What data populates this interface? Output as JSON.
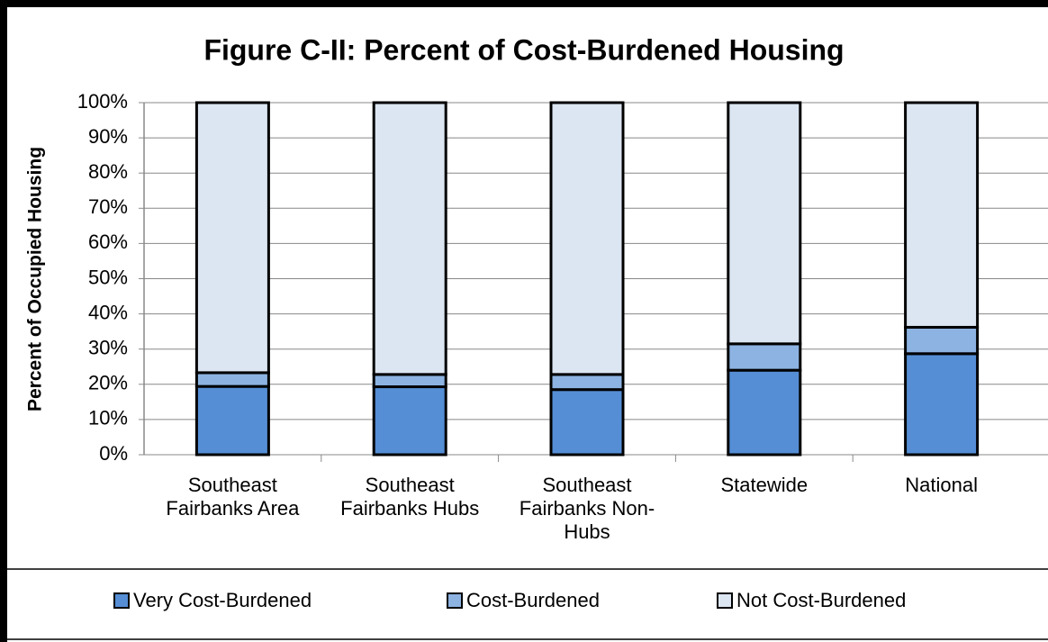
{
  "chart_data": {
    "type": "stacked_bar",
    "title": "Figure C-II: Percent of Cost-Burdened Housing",
    "y_label": "Percent of Occupied Housing",
    "categories": [
      "Southeast Fairbanks Area",
      "Southeast Fairbanks Hubs",
      "Southeast Fairbanks Non-Hubs",
      "Statewide",
      "National"
    ],
    "series": [
      {
        "name": "Very Cost-Burdened",
        "color": "#558ed5",
        "values": [
          19.4,
          19.3,
          18.5,
          24.0,
          28.7
        ]
      },
      {
        "name": "Cost-Burdened",
        "color": "#8db3e2",
        "values": [
          3.9,
          3.5,
          4.3,
          7.5,
          7.5
        ]
      },
      {
        "name": "Not Cost-Burdened",
        "color": "#dce6f2",
        "values": [
          76.7,
          77.2,
          77.2,
          68.5,
          63.8
        ]
      }
    ],
    "ylim": [
      0,
      100
    ],
    "yticks": [
      {
        "value": 0,
        "label": "0%"
      },
      {
        "value": 10,
        "label": "10%"
      },
      {
        "value": 20,
        "label": "20%"
      },
      {
        "value": 30,
        "label": "30%"
      },
      {
        "value": 40,
        "label": "40%"
      },
      {
        "value": 50,
        "label": "50%"
      },
      {
        "value": 60,
        "label": "60%"
      },
      {
        "value": 70,
        "label": "70%"
      },
      {
        "value": 80,
        "label": "80%"
      },
      {
        "value": 90,
        "label": "90%"
      },
      {
        "value": 100,
        "label": "100%"
      }
    ],
    "grid": true,
    "legend": "bottom"
  }
}
